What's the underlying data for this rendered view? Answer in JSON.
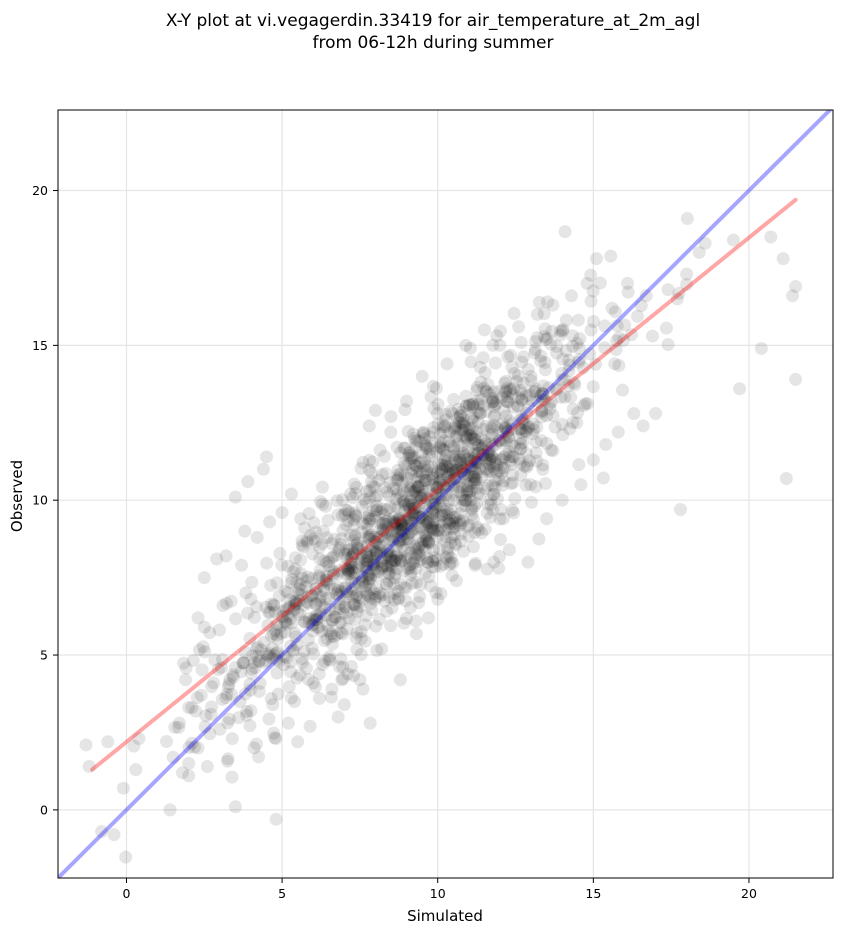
{
  "chart_data": {
    "type": "scatter",
    "title": "X-Y plot at vi.vegagerdin.33419 for air_temperature_at_2m_agl",
    "subtitle": "from 06-12h during summer",
    "xlabel": "Simulated",
    "ylabel": "Observed",
    "xlim": [
      -2.2,
      22.7
    ],
    "ylim": [
      -2.2,
      22.6
    ],
    "xticks": [
      0,
      5,
      10,
      15,
      20
    ],
    "yticks": [
      0,
      5,
      10,
      15,
      20
    ],
    "grid": true,
    "point_color": "#000000",
    "point_alpha": 0.1,
    "series": [
      {
        "type": "scatter",
        "points": [
          [
            -1.3,
            2.1
          ],
          [
            -1.2,
            1.4
          ],
          [
            -0.8,
            -0.7
          ],
          [
            -0.6,
            2.2
          ],
          [
            -0.4,
            -0.8
          ],
          [
            -0.1,
            0.7
          ],
          [
            0.3,
            1.3
          ],
          [
            0.4,
            2.3
          ],
          [
            1.4,
            0.0
          ],
          [
            1.5,
            1.7
          ],
          [
            1.7,
            2.8
          ],
          [
            1.8,
            1.2
          ],
          [
            1.9,
            4.2
          ],
          [
            2.0,
            1.5
          ],
          [
            2.0,
            1.1
          ],
          [
            2.1,
            3.3
          ],
          [
            2.3,
            6.2
          ],
          [
            2.3,
            2.0
          ],
          [
            2.4,
            3.7
          ],
          [
            2.5,
            5.9
          ],
          [
            2.5,
            7.5
          ],
          [
            2.6,
            1.4
          ],
          [
            2.8,
            4.1
          ],
          [
            2.9,
            8.1
          ],
          [
            3.0,
            2.6
          ],
          [
            3.1,
            6.6
          ],
          [
            3.2,
            8.2
          ],
          [
            3.4,
            2.3
          ],
          [
            3.5,
            0.1
          ],
          [
            3.5,
            10.1
          ],
          [
            3.7,
            7.9
          ],
          [
            3.8,
            9.0
          ],
          [
            3.9,
            10.6
          ],
          [
            4.0,
            3.2
          ],
          [
            4.1,
            2.0
          ],
          [
            4.2,
            8.8
          ],
          [
            4.4,
            11.0
          ],
          [
            4.5,
            11.4
          ],
          [
            4.6,
            9.3
          ],
          [
            4.7,
            3.4
          ],
          [
            4.8,
            2.3
          ],
          [
            5.0,
            9.6
          ],
          [
            5.2,
            2.8
          ],
          [
            5.3,
            10.2
          ],
          [
            5.4,
            3.5
          ],
          [
            5.5,
            2.2
          ],
          [
            5.6,
            9.4
          ],
          [
            5.8,
            8.7
          ],
          [
            5.9,
            2.7
          ],
          [
            6.0,
            4.1
          ],
          [
            6.2,
            3.6
          ],
          [
            6.4,
            9.8
          ],
          [
            6.6,
            3.9
          ],
          [
            6.8,
            3.0
          ],
          [
            7.0,
            3.4
          ],
          [
            7.2,
            10.2
          ],
          [
            7.5,
            4.2
          ],
          [
            7.6,
            3.9
          ],
          [
            7.8,
            12.4
          ],
          [
            8.0,
            12.9
          ],
          [
            8.2,
            5.2
          ],
          [
            8.5,
            12.7
          ],
          [
            8.8,
            4.2
          ],
          [
            9.0,
            13.2
          ],
          [
            9.3,
            6.1
          ],
          [
            9.5,
            14.0
          ],
          [
            9.7,
            6.2
          ],
          [
            10.0,
            6.8
          ],
          [
            10.3,
            14.4
          ],
          [
            10.6,
            7.4
          ],
          [
            10.9,
            15.0
          ],
          [
            11.2,
            7.9
          ],
          [
            11.5,
            15.5
          ],
          [
            11.8,
            8.0
          ],
          [
            12.0,
            15.0
          ],
          [
            12.3,
            8.4
          ],
          [
            12.6,
            15.6
          ],
          [
            12.9,
            8.0
          ],
          [
            13.2,
            16.0
          ],
          [
            13.5,
            9.4
          ],
          [
            13.7,
            16.3
          ],
          [
            14.0,
            10.0
          ],
          [
            14.3,
            16.6
          ],
          [
            14.6,
            10.5
          ],
          [
            14.8,
            17.0
          ],
          [
            15.0,
            11.3
          ],
          [
            15.1,
            17.8
          ],
          [
            15.4,
            11.8
          ],
          [
            15.6,
            16.2
          ],
          [
            15.8,
            12.2
          ],
          [
            16.1,
            17.0
          ],
          [
            16.3,
            12.8
          ],
          [
            16.6,
            12.4
          ],
          [
            16.7,
            16.6
          ],
          [
            16.9,
            15.3
          ],
          [
            17.0,
            12.8
          ],
          [
            17.4,
            16.8
          ],
          [
            17.7,
            16.5
          ],
          [
            17.8,
            9.7
          ],
          [
            18.0,
            17.3
          ],
          [
            18.4,
            18.0
          ],
          [
            19.5,
            18.4
          ],
          [
            19.7,
            13.6
          ],
          [
            20.4,
            14.9
          ],
          [
            20.7,
            18.5
          ],
          [
            21.1,
            17.8
          ],
          [
            21.2,
            10.7
          ],
          [
            21.4,
            16.6
          ],
          [
            21.5,
            16.9
          ],
          [
            21.5,
            13.9
          ]
        ]
      },
      {
        "type": "line",
        "color": "#ff0000",
        "alpha": 0.35,
        "points": [
          [
            -1.1,
            1.3
          ],
          [
            21.5,
            19.7
          ]
        ]
      },
      {
        "type": "line",
        "color": "#0000ff",
        "alpha": 0.35,
        "points": [
          [
            -2.2,
            -2.2
          ],
          [
            22.7,
            22.7
          ]
        ]
      }
    ],
    "cloud": {
      "x_center": 9.3,
      "y_center": 9.6,
      "x_spread": 2.9,
      "y_spread": 2.9,
      "correlation": 0.87,
      "count": 1500
    }
  }
}
